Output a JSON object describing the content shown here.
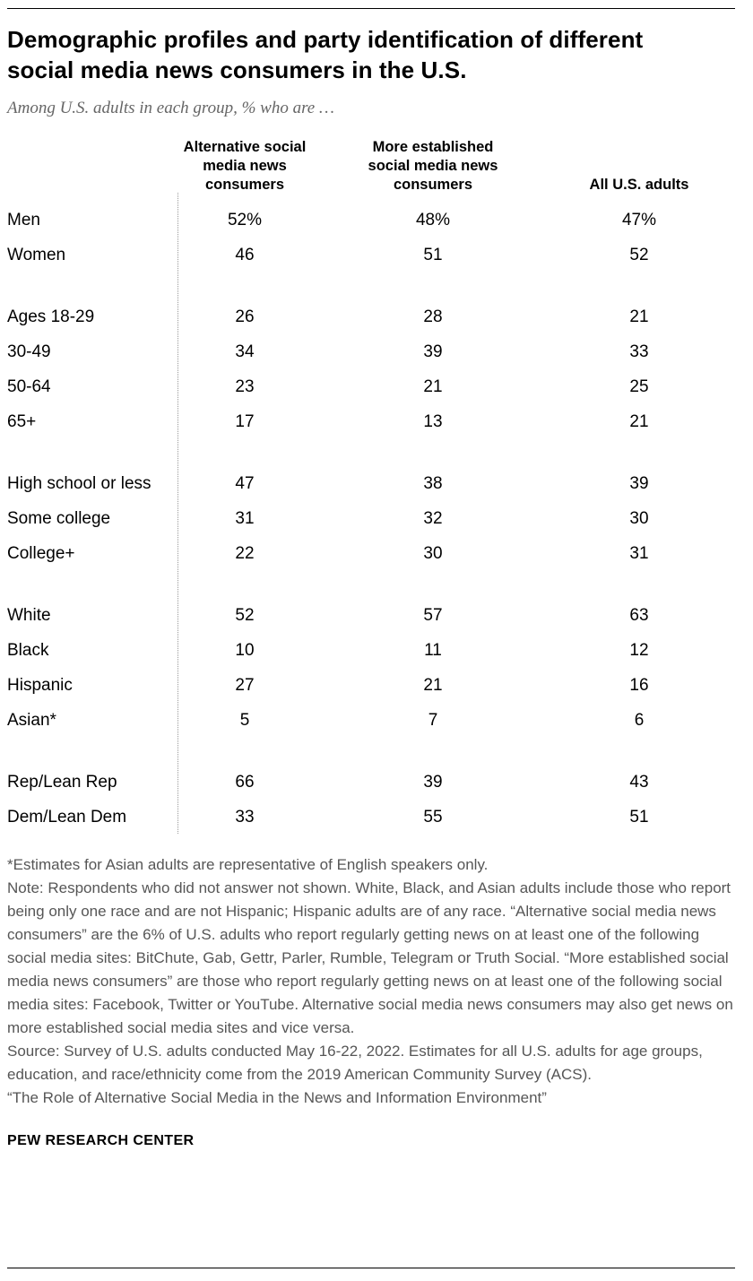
{
  "chart_data": {
    "type": "table",
    "title": "Demographic profiles and party identification of different social media news consumers in the U.S.",
    "subtitle": "Among U.S. adults in each group, % who are …",
    "columns": [
      "Alternative social media news consumers",
      "More established social media news consumers",
      "All U.S. adults"
    ],
    "groups": [
      {
        "name": "gender",
        "rows": [
          [
            "Men",
            "52%",
            "48%",
            "47%"
          ],
          [
            "Women",
            "46",
            "51",
            "52"
          ]
        ]
      },
      {
        "name": "age",
        "rows": [
          [
            "Ages 18-29",
            "26",
            "28",
            "21"
          ],
          [
            "30-49",
            "34",
            "39",
            "33"
          ],
          [
            "50-64",
            "23",
            "21",
            "25"
          ],
          [
            "65+",
            "17",
            "13",
            "21"
          ]
        ]
      },
      {
        "name": "education",
        "rows": [
          [
            "High school or less",
            "47",
            "38",
            "39"
          ],
          [
            "Some college",
            "31",
            "32",
            "30"
          ],
          [
            "College+",
            "22",
            "30",
            "31"
          ]
        ]
      },
      {
        "name": "race-ethnicity",
        "rows": [
          [
            "White",
            "52",
            "57",
            "63"
          ],
          [
            "Black",
            "10",
            "11",
            "12"
          ],
          [
            "Hispanic",
            "27",
            "21",
            "16"
          ],
          [
            "Asian*",
            "5",
            "7",
            "6"
          ]
        ]
      },
      {
        "name": "party",
        "rows": [
          [
            "Rep/Lean Rep",
            "66",
            "39",
            "43"
          ],
          [
            "Dem/Lean Dem",
            "33",
            "55",
            "51"
          ]
        ]
      }
    ]
  },
  "notes": [
    "*Estimates for Asian adults are representative of English speakers only.",
    "Note: Respondents who did not answer not shown. White, Black, and Asian adults include those who report being only one race and are not Hispanic; Hispanic adults are of any race. “Alternative social media news consumers” are the 6% of U.S. adults who report regularly getting news on at least one of the following social media sites: BitChute, Gab, Gettr, Parler, Rumble, Telegram or Truth Social. “More established social media news consumers” are those who report regularly getting news on at least one of the following social media sites: Facebook, Twitter or YouTube. Alternative social media news consumers may also get news on more established social media sites and vice versa.",
    "Source: Survey of U.S. adults conducted May 16-22, 2022. Estimates for all U.S. adults for age groups, education, and race/ethnicity come from the 2019 American Community Survey (ACS).",
    "“The Role of Alternative Social Media in the News and Information Environment”"
  ],
  "footer": "PEW RESEARCH CENTER"
}
